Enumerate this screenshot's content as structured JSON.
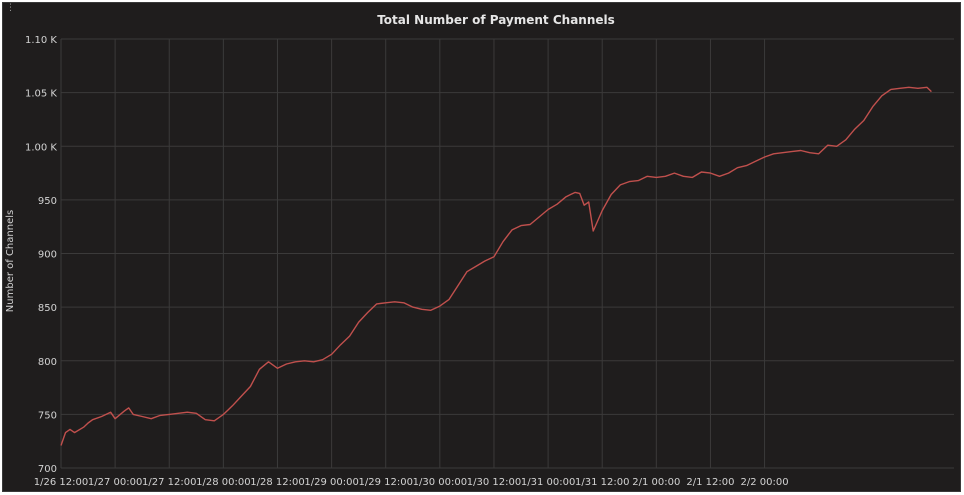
{
  "chart_data": {
    "type": "line",
    "title": "Total Number of Payment Channels",
    "xlabel": "",
    "ylabel": "Number of Channels",
    "ylim": [
      700,
      1100
    ],
    "grid": true,
    "legend": "none",
    "colors": {
      "background": "#1f1d1d",
      "grid": "#3b3a3a",
      "line": "#c0504d",
      "text": "#d2d2d2"
    },
    "yticks": [
      {
        "value": 700,
        "label": "700"
      },
      {
        "value": 750,
        "label": "750"
      },
      {
        "value": 800,
        "label": "800"
      },
      {
        "value": 850,
        "label": "850"
      },
      {
        "value": 900,
        "label": "900"
      },
      {
        "value": 950,
        "label": "950"
      },
      {
        "value": 1000,
        "label": "1.00 K"
      },
      {
        "value": 1050,
        "label": "1.05 K"
      },
      {
        "value": 1100,
        "label": "1.10 K"
      }
    ],
    "xticks": [
      "1/26 12:00",
      "1/27 00:00",
      "1/27 12:00",
      "1/28 00:00",
      "1/28 12:00",
      "1/29 00:00",
      "1/29 12:00",
      "1/30 00:00",
      "1/30 12:00",
      "1/31 00:00",
      "1/31 12:00",
      "2/1 00:00",
      "2/1 12:00",
      "2/2 00:00"
    ],
    "x_unit": "hours since 1/26 12:00",
    "series": [
      {
        "x": [
          0,
          1,
          2,
          3,
          5,
          6,
          7,
          9,
          11,
          12,
          14,
          15,
          16,
          18,
          20,
          22,
          24,
          26,
          28,
          30,
          32,
          34,
          36,
          37,
          38,
          40,
          42,
          44,
          46,
          48,
          50,
          52,
          54,
          56,
          58,
          60,
          62,
          64,
          66,
          68,
          70,
          72,
          74,
          76,
          78,
          80,
          82,
          84,
          86,
          88,
          90,
          92,
          94,
          96,
          98,
          100,
          102,
          104,
          106,
          108,
          110,
          112,
          113,
          114,
          115,
          116,
          117,
          118,
          120,
          122,
          124,
          126,
          128,
          130,
          132,
          134,
          136,
          138,
          140,
          142,
          144,
          146,
          148,
          150,
          152,
          154,
          156,
          158,
          160,
          162,
          164,
          166,
          168,
          170,
          172,
          174,
          176,
          178,
          180,
          182,
          184,
          186,
          188,
          190,
          192,
          193
        ],
        "values": [
          721,
          733,
          736,
          733,
          738,
          742,
          745,
          748,
          752,
          746,
          753,
          756,
          750,
          748,
          746,
          749,
          750,
          751,
          752,
          751,
          745,
          744,
          750,
          754,
          758,
          767,
          776,
          792,
          799,
          793,
          797,
          799,
          800,
          799,
          801,
          806,
          815,
          823,
          836,
          845,
          853,
          854,
          855,
          854,
          850,
          848,
          847,
          851,
          857,
          870,
          883,
          888,
          893,
          897,
          911,
          922,
          926,
          927,
          934,
          941,
          946,
          953,
          955,
          957,
          956,
          945,
          948,
          921,
          940,
          955,
          964,
          967,
          968,
          972,
          971,
          972,
          975,
          972,
          971,
          976,
          975,
          972,
          975,
          980,
          982,
          986,
          990,
          993,
          994,
          995,
          996,
          994,
          993,
          1001,
          1000,
          1006,
          1016,
          1024,
          1037,
          1047,
          1053,
          1054,
          1055,
          1054,
          1055,
          1051
        ]
      }
    ]
  }
}
